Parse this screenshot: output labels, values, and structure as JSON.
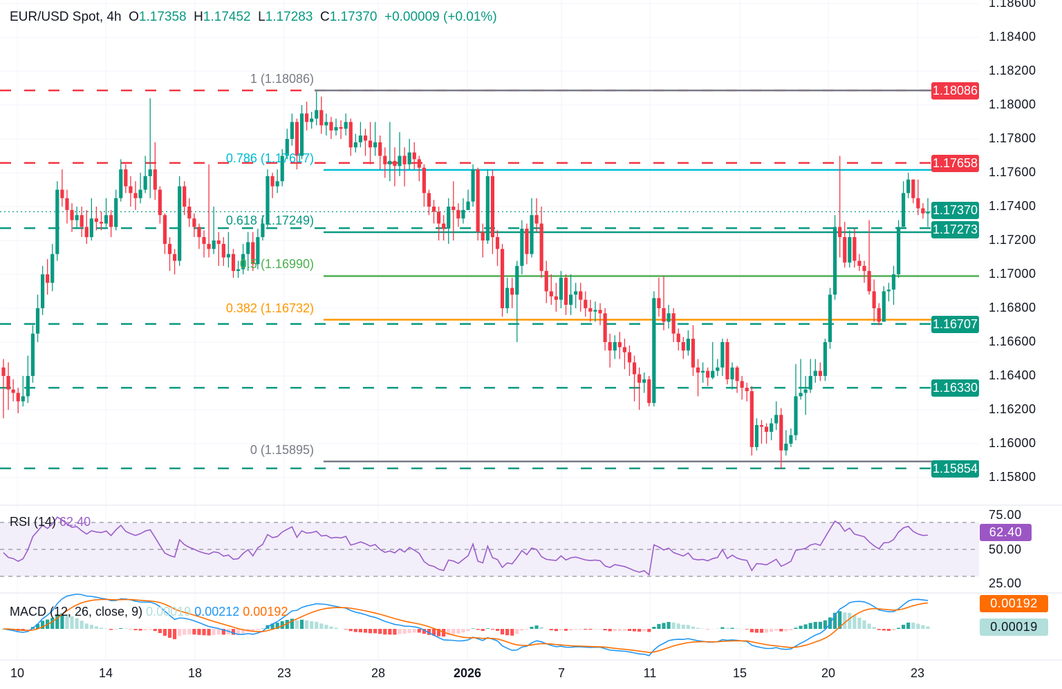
{
  "header": {
    "symbol": "EUR/USD Spot, 4h",
    "open_label": "O",
    "open": "1.17358",
    "high_label": "H",
    "high": "1.17452",
    "low_label": "L",
    "low": "1.17283",
    "close_label": "C",
    "close": "1.17370",
    "change": "+0.00009 (+0.01%)"
  },
  "colors": {
    "up": "#089981",
    "down": "#f23645",
    "resistance": "#f23645",
    "support": "#089981",
    "fib_1": "#787b86",
    "fib_0786": "#00bcd4",
    "fib_0618": "#089981",
    "fib_05": "#4caf50",
    "fib_0382": "#ff9800",
    "fib_0": "#787b86",
    "rsi": "#9c5dc9",
    "macd": "#2196f3",
    "signal": "#ff6d00"
  },
  "price_axis": {
    "ticks": [
      "1.18600",
      "1.18400",
      "1.18200",
      "1.18000",
      "1.17800",
      "1.17600",
      "1.17400",
      "1.17200",
      "1.17000",
      "1.16800",
      "1.16600",
      "1.16400",
      "1.16200",
      "1.16000",
      "1.15800"
    ]
  },
  "levels": [
    {
      "price": "1.18086",
      "style": "dashed",
      "color": "#f23645"
    },
    {
      "price": "1.17658",
      "style": "dashed",
      "color": "#f23645"
    },
    {
      "price": "1.17370",
      "style": "dotted",
      "color": "#089981",
      "current": true
    },
    {
      "price": "1.17273",
      "style": "dashed",
      "color": "#089981"
    },
    {
      "price": "1.16707",
      "style": "dashed",
      "color": "#089981"
    },
    {
      "price": "1.16330",
      "style": "dashed",
      "color": "#089981"
    },
    {
      "price": "1.15854",
      "style": "dashed",
      "color": "#089981"
    }
  ],
  "fibonacci": [
    {
      "label": "1 (1.18086)",
      "price": 1.18086,
      "color": "#787b86"
    },
    {
      "label": "0.786 (1.17617)",
      "price": 1.17617,
      "color": "#00bcd4"
    },
    {
      "label": "0.618 (1.17249)",
      "price": 1.17249,
      "color": "#089981"
    },
    {
      "label": "0.5 (1.16990)",
      "price": 1.1699,
      "color": "#4caf50"
    },
    {
      "label": "0.382 (1.16732)",
      "price": 1.16732,
      "color": "#ff9800"
    },
    {
      "label": "0 (1.15895)",
      "price": 1.15895,
      "color": "#787b86"
    }
  ],
  "x_axis": {
    "labels": [
      "10",
      "14",
      "18",
      "23",
      "28",
      "2026",
      "7",
      "11",
      "15",
      "20",
      "23"
    ]
  },
  "rsi": {
    "title": "RSI (14)",
    "value": "62.40",
    "levels": [
      "75.00",
      "50.00",
      "25.00"
    ]
  },
  "macd": {
    "title": "MACD (12, 26, close, 9)",
    "histogram": "0.00019",
    "macd": "0.00212",
    "signal": "0.00192"
  },
  "chart_data": {
    "type": "candlestick",
    "title": "EUR/USD Spot, 4h",
    "ylim": [
      1.1577,
      1.1862
    ],
    "grid": true,
    "first_open": 1.1645,
    "close": [
      1.164,
      1.1632,
      1.163,
      1.1625,
      1.1628,
      1.164,
      1.1665,
      1.168,
      1.17,
      1.1695,
      1.1712,
      1.175,
      1.1745,
      1.1738,
      1.1732,
      1.1735,
      1.1728,
      1.1722,
      1.1733,
      1.1731,
      1.173,
      1.1735,
      1.1728,
      1.1745,
      1.1762,
      1.1752,
      1.1748,
      1.1745,
      1.175,
      1.1758,
      1.1762,
      1.175,
      1.1735,
      1.1718,
      1.1712,
      1.1708,
      1.1752,
      1.174,
      1.1733,
      1.1728,
      1.1722,
      1.1718,
      1.1715,
      1.172,
      1.1718,
      1.171,
      1.1712,
      1.1702,
      1.1703,
      1.1712,
      1.1719,
      1.1706,
      1.1722,
      1.173,
      1.1758,
      1.1752,
      1.1755,
      1.177,
      1.178,
      1.179,
      1.177,
      1.1795,
      1.179,
      1.1792,
      1.1797,
      1.1788,
      1.179,
      1.1785,
      1.1787,
      1.1786,
      1.179,
      1.1775,
      1.1778,
      1.1782,
      1.1779,
      1.1775,
      1.1778,
      1.177,
      1.1765,
      1.1767,
      1.1764,
      1.177,
      1.1765,
      1.1772,
      1.1768,
      1.1763,
      1.1748,
      1.174,
      1.1737,
      1.173,
      1.1727,
      1.174,
      1.1738,
      1.1733,
      1.1738,
      1.1743,
      1.1762,
      1.1725,
      1.172,
      1.1758,
      1.1722,
      1.1715,
      1.168,
      1.1692,
      1.1688,
      1.1705,
      1.1727,
      1.1712,
      1.1735,
      1.173,
      1.1702,
      1.169,
      1.1687,
      1.1685,
      1.1698,
      1.1682,
      1.1688,
      1.169,
      1.1685,
      1.168,
      1.1678,
      1.1679,
      1.1677,
      1.166,
      1.1655,
      1.166,
      1.1657,
      1.1654,
      1.1648,
      1.1641,
      1.1636,
      1.1638,
      1.1624,
      1.1686,
      1.168,
      1.1672,
      1.1677,
      1.1665,
      1.166,
      1.1655,
      1.1662,
      1.1645,
      1.1642,
      1.1643,
      1.1639,
      1.1643,
      1.1645,
      1.166,
      1.1638,
      1.1645,
      1.1637,
      1.1633,
      1.1631,
      1.1598,
      1.1611,
      1.161,
      1.1607,
      1.1612,
      1.1617,
      1.1596,
      1.16,
      1.1605,
      1.1628,
      1.163,
      1.1632,
      1.164,
      1.1643,
      1.164,
      1.166,
      1.1688,
      1.1728,
      1.1722,
      1.1707,
      1.1722,
      1.1708,
      1.1705,
      1.1702,
      1.169,
      1.168,
      1.1672,
      1.169,
      1.1691,
      1.17,
      1.1728,
      1.1748,
      1.1756,
      1.1745,
      1.1739,
      1.1736,
      1.1737
    ],
    "high": [
      1.165,
      1.1648,
      1.1638,
      1.1633,
      1.164,
      1.1652,
      1.167,
      1.1688,
      1.1705,
      1.1709,
      1.1718,
      1.1755,
      1.1762,
      1.175,
      1.1742,
      1.174,
      1.174,
      1.1738,
      1.1745,
      1.174,
      1.1737,
      1.1745,
      1.1738,
      1.175,
      1.1768,
      1.1765,
      1.1758,
      1.1755,
      1.176,
      1.177,
      1.1804,
      1.1778,
      1.1752,
      1.1736,
      1.1722,
      1.1715,
      1.1758,
      1.1755,
      1.1745,
      1.1736,
      1.173,
      1.1726,
      1.1765,
      1.174,
      1.1725,
      1.1722,
      1.1725,
      1.1715,
      1.1708,
      1.1718,
      1.1725,
      1.1725,
      1.1727,
      1.1735,
      1.1762,
      1.176,
      1.1762,
      1.1774,
      1.1786,
      1.1795,
      1.1792,
      1.18,
      1.1802,
      1.1796,
      1.1808,
      1.1805,
      1.1795,
      1.1793,
      1.1792,
      1.1791,
      1.1795,
      1.1792,
      1.1783,
      1.179,
      1.1786,
      1.179,
      1.179,
      1.1782,
      1.1775,
      1.179,
      1.1775,
      1.1784,
      1.1775,
      1.178,
      1.1778,
      1.177,
      1.1765,
      1.175,
      1.1744,
      1.174,
      1.1735,
      1.1745,
      1.1755,
      1.1742,
      1.1745,
      1.175,
      1.1765,
      1.1763,
      1.173,
      1.1762,
      1.1762,
      1.1726,
      1.1718,
      1.1698,
      1.1698,
      1.1708,
      1.1732,
      1.173,
      1.1745,
      1.1745,
      1.174,
      1.1708,
      1.17,
      1.1695,
      1.1702,
      1.17,
      1.17,
      1.1695,
      1.1695,
      1.169,
      1.1685,
      1.1684,
      1.1683,
      1.168,
      1.1665,
      1.1664,
      1.1666,
      1.1662,
      1.1658,
      1.1652,
      1.1645,
      1.1642,
      1.164,
      1.169,
      1.1698,
      1.1699,
      1.1682,
      1.168,
      1.1668,
      1.1663,
      1.1667,
      1.167,
      1.165,
      1.1648,
      1.1645,
      1.166,
      1.165,
      1.1662,
      1.1662,
      1.1648,
      1.1646,
      1.164,
      1.1636,
      1.1634,
      1.1615,
      1.1614,
      1.1612,
      1.1615,
      1.1625,
      1.1621,
      1.1608,
      1.1609,
      1.1647,
      1.165,
      1.164,
      1.165,
      1.165,
      1.1648,
      1.1662,
      1.1692,
      1.1735,
      1.177,
      1.1731,
      1.1726,
      1.1727,
      1.1712,
      1.1708,
      1.1732,
      1.1697,
      1.1683,
      1.1693,
      1.1695,
      1.1705,
      1.1732,
      1.1755,
      1.176,
      1.1756,
      1.1756,
      1.1742,
      1.1745
    ],
    "low": [
      1.1615,
      1.162,
      1.1625,
      1.1618,
      1.1622,
      1.1624,
      1.1636,
      1.166,
      1.1676,
      1.1688,
      1.169,
      1.1708,
      1.174,
      1.173,
      1.1725,
      1.1727,
      1.1722,
      1.1718,
      1.172,
      1.1726,
      1.1726,
      1.1728,
      1.1722,
      1.1726,
      1.1743,
      1.1748,
      1.174,
      1.1738,
      1.1742,
      1.1748,
      1.1745,
      1.1744,
      1.173,
      1.1712,
      1.1702,
      1.17,
      1.1705,
      1.1735,
      1.1728,
      1.1722,
      1.1715,
      1.171,
      1.171,
      1.1712,
      1.1705,
      1.1705,
      1.1704,
      1.1698,
      1.1698,
      1.17,
      1.1702,
      1.1702,
      1.1703,
      1.172,
      1.1728,
      1.1745,
      1.1748,
      1.1752,
      1.1768,
      1.1776,
      1.1762,
      1.1768,
      1.1785,
      1.1786,
      1.1788,
      1.1783,
      1.1782,
      1.178,
      1.1782,
      1.178,
      1.1782,
      1.177,
      1.1772,
      1.1775,
      1.177,
      1.1765,
      1.177,
      1.1762,
      1.1757,
      1.1755,
      1.1752,
      1.1758,
      1.1752,
      1.1762,
      1.1762,
      1.1755,
      1.174,
      1.1735,
      1.173,
      1.172,
      1.172,
      1.1718,
      1.172,
      1.1728,
      1.173,
      1.1738,
      1.174,
      1.172,
      1.171,
      1.1718,
      1.1712,
      1.1705,
      1.1675,
      1.1677,
      1.168,
      1.166,
      1.17,
      1.1706,
      1.171,
      1.1725,
      1.1698,
      1.1683,
      1.1682,
      1.1678,
      1.168,
      1.1676,
      1.1676,
      1.168,
      1.1678,
      1.1675,
      1.1672,
      1.1672,
      1.167,
      1.1655,
      1.1645,
      1.165,
      1.165,
      1.1644,
      1.164,
      1.1625,
      1.162,
      1.163,
      1.1622,
      1.1622,
      1.1675,
      1.1667,
      1.1668,
      1.166,
      1.1655,
      1.165,
      1.1652,
      1.164,
      1.1628,
      1.1636,
      1.1634,
      1.1638,
      1.164,
      1.164,
      1.1635,
      1.1632,
      1.163,
      1.1626,
      1.1625,
      1.1593,
      1.1596,
      1.16,
      1.16,
      1.1602,
      1.1608,
      1.1585,
      1.1593,
      1.1598,
      1.1602,
      1.1626,
      1.1617,
      1.163,
      1.1636,
      1.1637,
      1.1637,
      1.1656,
      1.1685,
      1.171,
      1.1704,
      1.1704,
      1.1704,
      1.1702,
      1.1695,
      1.1688,
      1.1672,
      1.167,
      1.1672,
      1.1684,
      1.1682,
      1.1698,
      1.1728,
      1.1745,
      1.1742,
      1.1735,
      1.1733,
      1.1728
    ]
  }
}
